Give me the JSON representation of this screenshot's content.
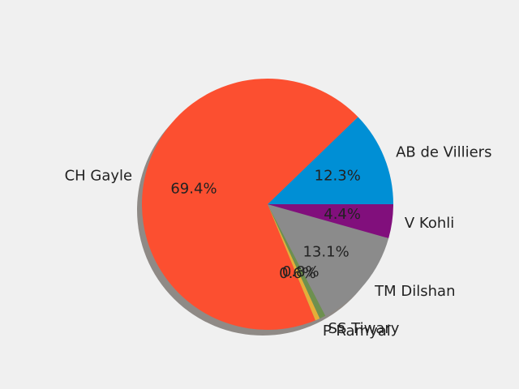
{
  "chart_data": {
    "type": "pie",
    "slices": [
      {
        "label": "AB de Villiers",
        "value": 12.3,
        "pct_label": "12.3%",
        "color": "#008fd5"
      },
      {
        "label": "CH Gayle",
        "value": 69.4,
        "pct_label": "69.4%",
        "color": "#fc4f30"
      },
      {
        "label": "P Ramyal",
        "value": 0.6,
        "pct_label": "0.6%",
        "color": "#e5ae38"
      },
      {
        "label": "SS Tiwary",
        "value": 0.8,
        "pct_label": "0.8%",
        "color": "#6d904f"
      },
      {
        "label": "TM Dilshan",
        "value": 13.1,
        "pct_label": "13.1%",
        "color": "#8b8b8b"
      },
      {
        "label": "V Kohli",
        "value": 4.4,
        "pct_label": "4.4%",
        "color": "#810f7c"
      }
    ],
    "start_angle_deg": 0,
    "direction": "counterclockwise",
    "shadow": true
  }
}
